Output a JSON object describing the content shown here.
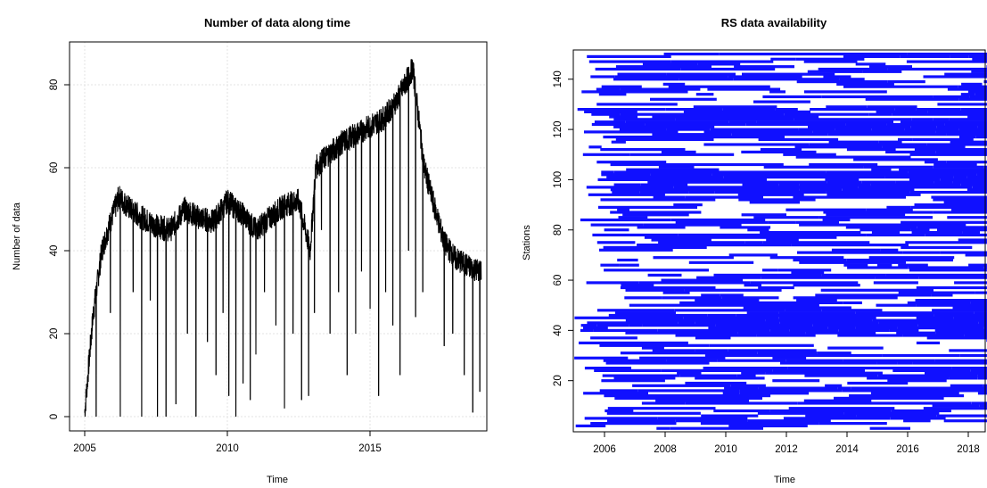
{
  "chart_data": [
    {
      "type": "line",
      "title": "Number of data along time",
      "xlabel": "Time",
      "ylabel": "Number of data",
      "xlim": [
        2005,
        2019
      ],
      "ylim": [
        0,
        85
      ],
      "x_ticks": [
        "2005",
        "2010",
        "2015"
      ],
      "y_ticks": [
        "0",
        "20",
        "40",
        "60",
        "80"
      ],
      "grid": true,
      "series": [
        {
          "color": "#000000",
          "x": [
            2005.0,
            2005.3,
            2005.6,
            2005.9,
            2006.2,
            2006.6,
            2007.0,
            2007.5,
            2008.0,
            2008.5,
            2009.0,
            2009.5,
            2010.0,
            2010.5,
            2011.0,
            2011.5,
            2012.0,
            2012.5,
            2012.9,
            2013.1,
            2013.5,
            2014.0,
            2014.5,
            2015.0,
            2015.5,
            2016.0,
            2016.5,
            2016.9,
            2017.2,
            2017.6,
            2018.0,
            2018.5,
            2018.9
          ],
          "values": [
            1,
            25,
            40,
            47,
            53,
            50,
            48,
            46,
            45,
            50,
            48,
            47,
            52,
            49,
            45,
            48,
            51,
            52,
            40,
            60,
            63,
            66,
            68,
            70,
            72,
            77,
            84,
            60,
            52,
            42,
            38,
            36,
            35
          ]
        }
      ],
      "dips": [
        {
          "x": 2005.4,
          "min": 0
        },
        {
          "x": 2005.9,
          "min": 25
        },
        {
          "x": 2006.25,
          "min": 0
        },
        {
          "x": 2006.7,
          "min": 30
        },
        {
          "x": 2007.0,
          "min": 0
        },
        {
          "x": 2007.3,
          "min": 28
        },
        {
          "x": 2007.55,
          "min": 0
        },
        {
          "x": 2007.85,
          "min": 0
        },
        {
          "x": 2008.2,
          "min": 3
        },
        {
          "x": 2008.6,
          "min": 20
        },
        {
          "x": 2008.9,
          "min": 0
        },
        {
          "x": 2009.3,
          "min": 18
        },
        {
          "x": 2009.6,
          "min": 10
        },
        {
          "x": 2009.85,
          "min": 25
        },
        {
          "x": 2010.05,
          "min": 5
        },
        {
          "x": 2010.3,
          "min": 0
        },
        {
          "x": 2010.55,
          "min": 8
        },
        {
          "x": 2010.8,
          "min": 4
        },
        {
          "x": 2011.0,
          "min": 15
        },
        {
          "x": 2011.3,
          "min": 30
        },
        {
          "x": 2011.7,
          "min": 22
        },
        {
          "x": 2012.0,
          "min": 2
        },
        {
          "x": 2012.3,
          "min": 20
        },
        {
          "x": 2012.6,
          "min": 4
        },
        {
          "x": 2012.85,
          "min": 5
        },
        {
          "x": 2013.05,
          "min": 25
        },
        {
          "x": 2013.3,
          "min": 45
        },
        {
          "x": 2013.6,
          "min": 20
        },
        {
          "x": 2013.9,
          "min": 30
        },
        {
          "x": 2014.2,
          "min": 10
        },
        {
          "x": 2014.5,
          "min": 20
        },
        {
          "x": 2014.7,
          "min": 35
        },
        {
          "x": 2015.0,
          "min": 26
        },
        {
          "x": 2015.3,
          "min": 5
        },
        {
          "x": 2015.55,
          "min": 30
        },
        {
          "x": 2015.8,
          "min": 22
        },
        {
          "x": 2016.05,
          "min": 10
        },
        {
          "x": 2016.35,
          "min": 40
        },
        {
          "x": 2016.6,
          "min": 24
        },
        {
          "x": 2016.85,
          "min": 30
        },
        {
          "x": 2017.6,
          "min": 17
        },
        {
          "x": 2017.9,
          "min": 20
        },
        {
          "x": 2018.3,
          "min": 10
        },
        {
          "x": 2018.6,
          "min": 1
        },
        {
          "x": 2018.85,
          "min": 6
        }
      ]
    },
    {
      "type": "scatter",
      "title": "RS data availability",
      "xlabel": "Time",
      "ylabel": "Stations",
      "xlim": [
        2005.0,
        2018.9
      ],
      "ylim": [
        0,
        152
      ],
      "x_ticks": [
        "2006",
        "2008",
        "2010",
        "2012",
        "2014",
        "2016",
        "2018"
      ],
      "y_ticks": [
        "20",
        "40",
        "60",
        "80",
        "100",
        "120",
        "140"
      ],
      "color": "#1010ff",
      "station_count": 150
    }
  ]
}
